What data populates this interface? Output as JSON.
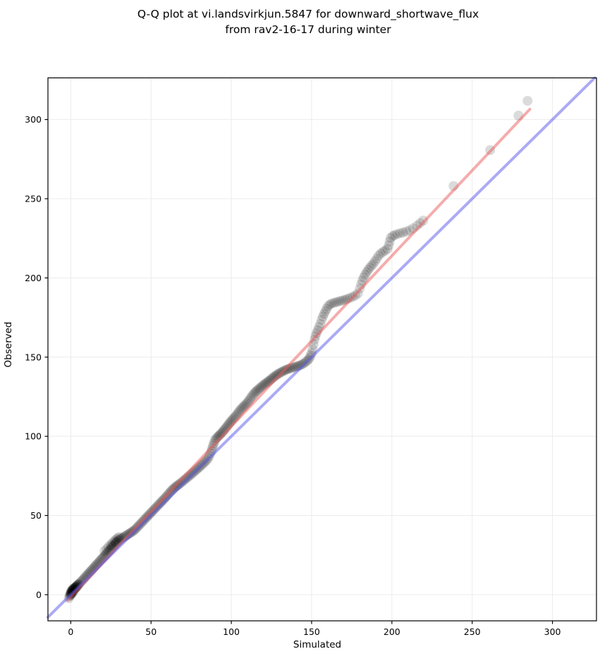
{
  "title": {
    "line1": "Q-Q plot at vi.landsvirkjun.5847 for downward_shortwave_flux",
    "line2": "from rav2-16-17 during winter"
  },
  "colors": {
    "background": "#ffffff",
    "grid": "#ebebeb",
    "spine": "#000000",
    "marker": "#000000",
    "marker_opacity": 0.14,
    "fit_line": "rgba(235,90,90,0.5)",
    "identity_line": "rgba(85,85,235,0.5)"
  },
  "chart_data": {
    "type": "scatter",
    "title": "Q-Q plot at vi.landsvirkjun.5847 for downward_shortwave_flux from rav2-16-17 during winter",
    "xlabel": "Simulated",
    "ylabel": "Observed",
    "xlim": [
      -14.2,
      327.4
    ],
    "ylim": [
      -16.5,
      326.3
    ],
    "x_ticks": [
      0,
      50,
      100,
      150,
      200,
      250,
      300
    ],
    "y_ticks": [
      0,
      50,
      100,
      150,
      200,
      250,
      300
    ],
    "grid": true,
    "legend": "none",
    "marker_radius": 7,
    "series": [
      {
        "name": "quantile-points",
        "type": "scatter",
        "points": [
          [
            -1.2,
            -2.2
          ],
          [
            -0.8,
            -1
          ],
          [
            -0.5,
            -0.4
          ],
          [
            0,
            -0.3
          ],
          [
            -0.3,
            0.6
          ],
          [
            0,
            0.5
          ],
          [
            0.1,
            1
          ],
          [
            0.2,
            1.6
          ],
          [
            0.3,
            2.2
          ],
          [
            0.5,
            0.3
          ],
          [
            0.5,
            1.2
          ],
          [
            0.6,
            2.6
          ],
          [
            0.8,
            1.8
          ],
          [
            0.9,
            3
          ],
          [
            1,
            1.1
          ],
          [
            1,
            2.3
          ],
          [
            1.2,
            3.4
          ],
          [
            1.4,
            2.8
          ],
          [
            1.5,
            1.9
          ],
          [
            1.6,
            3.8
          ],
          [
            1.8,
            3.1
          ],
          [
            2,
            2.6
          ],
          [
            2,
            4.1
          ],
          [
            2.2,
            3.5
          ],
          [
            2.4,
            4.4
          ],
          [
            2.6,
            3.9
          ],
          [
            2.8,
            4.7
          ],
          [
            3,
            4.2
          ],
          [
            3.2,
            5
          ],
          [
            3.4,
            4.6
          ],
          [
            3.6,
            5.3
          ],
          [
            3.8,
            5.7
          ],
          [
            4,
            5
          ],
          [
            4.2,
            6
          ],
          [
            4.5,
            6.3
          ],
          [
            4.8,
            6.6
          ],
          [
            5,
            6.6
          ],
          [
            5.7,
            7.4
          ],
          [
            6.4,
            8.2
          ],
          [
            7.1,
            8.9
          ],
          [
            7.8,
            9.7
          ],
          [
            8.5,
            10.5
          ],
          [
            9.2,
            11.4
          ],
          [
            9.9,
            12.1
          ],
          [
            10.6,
            12.9
          ],
          [
            11.3,
            13.6
          ],
          [
            12,
            14.4
          ],
          [
            12.7,
            15.2
          ],
          [
            13.4,
            16
          ],
          [
            14.1,
            16.8
          ],
          [
            14.8,
            17.6
          ],
          [
            15.5,
            18.4
          ],
          [
            16.2,
            19.1
          ],
          [
            16.9,
            19.9
          ],
          [
            17.6,
            20.7
          ],
          [
            18.3,
            21.5
          ],
          [
            19,
            22.3
          ],
          [
            19.7,
            23.1
          ],
          [
            20.4,
            23.8
          ],
          [
            21.1,
            24.6
          ],
          [
            21.8,
            25.4
          ],
          [
            22.5,
            26.2
          ],
          [
            23.2,
            27
          ],
          [
            23.9,
            27.8
          ],
          [
            24.6,
            28.5
          ],
          [
            25.3,
            29.3
          ],
          [
            26,
            30.1
          ],
          [
            26.7,
            30.9
          ],
          [
            27.4,
            31.7
          ],
          [
            28.1,
            32.5
          ],
          [
            28.8,
            33.2
          ],
          [
            29.5,
            34
          ],
          [
            21,
            27.5
          ],
          [
            22.3,
            28.8
          ],
          [
            23.5,
            30.2
          ],
          [
            24.8,
            31.5
          ],
          [
            26,
            32.8
          ],
          [
            27.2,
            34
          ],
          [
            28.3,
            35
          ],
          [
            29.3,
            35.8
          ],
          [
            30.2,
            36.4
          ],
          [
            25.5,
            31
          ],
          [
            27.8,
            33.3
          ],
          [
            30.1,
            34.5
          ],
          [
            30.9,
            35.1
          ],
          [
            31.7,
            35.6
          ],
          [
            32.5,
            36.1
          ],
          [
            33.3,
            36.6
          ],
          [
            34.1,
            37.1
          ],
          [
            34.9,
            37.6
          ],
          [
            35.7,
            38.1
          ],
          [
            36.5,
            38.6
          ],
          [
            37.3,
            39.1
          ],
          [
            38.1,
            39.7
          ],
          [
            38.9,
            40.2
          ],
          [
            39.7,
            40.8
          ],
          [
            40.5,
            41.6
          ],
          [
            41.3,
            42.5
          ],
          [
            42.1,
            43.3
          ],
          [
            42.9,
            44.2
          ],
          [
            43.7,
            45
          ],
          [
            44.5,
            45.9
          ],
          [
            45.3,
            46.7
          ],
          [
            46.1,
            47.6
          ],
          [
            46.9,
            48.5
          ],
          [
            47.7,
            49.3
          ],
          [
            48.5,
            50.2
          ],
          [
            49.3,
            51
          ],
          [
            50.1,
            51.9
          ],
          [
            50.9,
            52.7
          ],
          [
            51.7,
            53.6
          ],
          [
            52.5,
            54.4
          ],
          [
            53.3,
            55.3
          ],
          [
            54.1,
            56.2
          ],
          [
            54.9,
            57
          ],
          [
            55.7,
            57.9
          ],
          [
            56.5,
            58.7
          ],
          [
            57.3,
            59.6
          ],
          [
            58.1,
            60.4
          ],
          [
            58.9,
            61.3
          ],
          [
            59.7,
            62.1
          ],
          [
            60.5,
            63.2
          ],
          [
            61.3,
            64.1
          ],
          [
            62.1,
            65
          ],
          [
            62.9,
            65.9
          ],
          [
            63.7,
            66.7
          ],
          [
            64.5,
            67.4
          ],
          [
            65.3,
            68.1
          ],
          [
            66.1,
            68.7
          ],
          [
            66.9,
            69.3
          ],
          [
            67.7,
            69.9
          ],
          [
            68.6,
            70.6
          ],
          [
            69.5,
            71.4
          ],
          [
            70.4,
            72.1
          ],
          [
            71.3,
            72.9
          ],
          [
            72.2,
            73.7
          ],
          [
            73.1,
            74.4
          ],
          [
            74,
            75.2
          ],
          [
            74.9,
            75.9
          ],
          [
            75.8,
            76.7
          ],
          [
            76.7,
            77.5
          ],
          [
            77.6,
            78.3
          ],
          [
            78.5,
            79.1
          ],
          [
            79.4,
            79.9
          ],
          [
            80.3,
            80.7
          ],
          [
            81.2,
            81.6
          ],
          [
            82.1,
            82.4
          ],
          [
            83,
            83.3
          ],
          [
            83.9,
            84.2
          ],
          [
            84.8,
            85.1
          ],
          [
            85.6,
            86.3
          ],
          [
            86.3,
            87.6
          ],
          [
            87,
            89.2
          ],
          [
            87.6,
            90.8
          ],
          [
            88.1,
            92.4
          ],
          [
            88.6,
            94
          ],
          [
            89.1,
            95.5
          ],
          [
            89.6,
            97
          ],
          [
            90.2,
            98.2
          ],
          [
            90.9,
            99
          ],
          [
            91.6,
            99.7
          ],
          [
            92.3,
            100.4
          ],
          [
            93,
            101.1
          ],
          [
            93.7,
            101.9
          ],
          [
            94.4,
            102.6
          ],
          [
            95.1,
            103.4
          ],
          [
            95.8,
            104.3
          ],
          [
            96.5,
            105.2
          ],
          [
            97.2,
            106.1
          ],
          [
            97.9,
            107.1
          ],
          [
            98.6,
            108
          ],
          [
            99.3,
            108.9
          ],
          [
            100,
            109.8
          ],
          [
            100.8,
            110.7
          ],
          [
            101.6,
            111.6
          ],
          [
            102.4,
            112.5
          ],
          [
            103.2,
            113.5
          ],
          [
            104,
            114.6
          ],
          [
            104.8,
            115.7
          ],
          [
            105.6,
            116.7
          ],
          [
            106.4,
            117.6
          ],
          [
            107.2,
            118.4
          ],
          [
            108,
            119.2
          ],
          [
            108.8,
            120
          ],
          [
            109.6,
            120.9
          ],
          [
            110.4,
            121.9
          ],
          [
            111.2,
            123
          ],
          [
            112,
            124.2
          ],
          [
            112.8,
            125.3
          ],
          [
            113.6,
            126.4
          ],
          [
            114.4,
            127.4
          ],
          [
            115.2,
            128.2
          ],
          [
            116,
            128.9
          ],
          [
            116.8,
            129.6
          ],
          [
            117.6,
            130.3
          ],
          [
            118.4,
            131
          ],
          [
            119.2,
            131.7
          ],
          [
            120,
            132.4
          ],
          [
            120.8,
            133
          ],
          [
            121.6,
            133.6
          ],
          [
            122.4,
            134.2
          ],
          [
            123.2,
            134.8
          ],
          [
            124,
            135.4
          ],
          [
            124.8,
            136.1
          ],
          [
            125.6,
            136.8
          ],
          [
            126.4,
            137.4
          ],
          [
            127.2,
            138
          ],
          [
            128,
            138.6
          ],
          [
            128.8,
            139.2
          ],
          [
            129.7,
            139.7
          ],
          [
            130.6,
            140.2
          ],
          [
            131.5,
            140.7
          ],
          [
            132.4,
            141.2
          ],
          [
            133.3,
            141.6
          ],
          [
            134.2,
            142
          ],
          [
            135.1,
            142.4
          ],
          [
            136,
            142.7
          ],
          [
            137,
            143
          ],
          [
            138,
            143.3
          ],
          [
            139,
            143.6
          ],
          [
            140,
            143.9
          ],
          [
            141,
            144.2
          ],
          [
            142,
            144.5
          ],
          [
            143,
            144.9
          ],
          [
            144,
            145.4
          ],
          [
            145,
            146
          ],
          [
            146,
            146.7
          ],
          [
            147,
            147.5
          ],
          [
            148,
            148.4
          ],
          [
            148.7,
            149.5
          ],
          [
            149.4,
            151
          ],
          [
            150,
            152.5
          ],
          [
            150.6,
            155
          ],
          [
            151.2,
            158
          ],
          [
            151.8,
            161
          ],
          [
            152.4,
            163.3
          ],
          [
            153.1,
            165.2
          ],
          [
            153.8,
            167
          ],
          [
            154.6,
            169
          ],
          [
            155.4,
            171
          ],
          [
            156.2,
            173.5
          ],
          [
            157,
            175.5
          ],
          [
            157.8,
            177.3
          ],
          [
            158.6,
            179
          ],
          [
            159.4,
            180.6
          ],
          [
            160.3,
            182.2
          ],
          [
            161.4,
            183.2
          ],
          [
            162.6,
            183.9
          ],
          [
            164,
            184.3
          ],
          [
            165.4,
            184.7
          ],
          [
            166.8,
            185.1
          ],
          [
            168.2,
            185.5
          ],
          [
            169.6,
            185.9
          ],
          [
            171,
            186.3
          ],
          [
            172.4,
            186.8
          ],
          [
            174,
            187.4
          ],
          [
            175.6,
            188.1
          ],
          [
            177.2,
            188.9
          ],
          [
            178.8,
            190.2
          ],
          [
            180,
            193.3
          ],
          [
            180.8,
            196
          ],
          [
            181.6,
            198.4
          ],
          [
            182.4,
            200.3
          ],
          [
            183.3,
            202
          ],
          [
            184.2,
            203.6
          ],
          [
            185.2,
            205.1
          ],
          [
            186.2,
            206.4
          ],
          [
            187.3,
            207.7
          ],
          [
            188.4,
            209
          ],
          [
            189.5,
            210.5
          ],
          [
            190.6,
            212.2
          ],
          [
            191.7,
            214
          ],
          [
            193,
            215.4
          ],
          [
            194.4,
            216.4
          ],
          [
            195.8,
            217.3
          ],
          [
            197.2,
            218.3
          ],
          [
            198,
            220.5
          ],
          [
            198.6,
            223
          ],
          [
            199.2,
            225.2
          ],
          [
            200.4,
            226.4
          ],
          [
            201.8,
            227.1
          ],
          [
            203.4,
            227.7
          ],
          [
            205.2,
            228.2
          ],
          [
            207,
            228.7
          ],
          [
            209,
            229.3
          ],
          [
            211,
            230.1
          ],
          [
            213.2,
            231.3
          ],
          [
            215.6,
            233
          ],
          [
            217.6,
            234.6
          ],
          [
            219.5,
            236.2
          ],
          [
            238.4,
            258
          ],
          [
            261.2,
            280.7
          ],
          [
            278.8,
            302.5
          ],
          [
            284.5,
            311.8
          ]
        ]
      },
      {
        "name": "fit-line",
        "type": "line",
        "from": [
          -2,
          -3.55
        ],
        "to": [
          285.9,
          306.5
        ]
      },
      {
        "name": "identity-line",
        "type": "line",
        "from": [
          -14.2,
          -14.2
        ],
        "to": [
          326.3,
          326.3
        ]
      }
    ]
  }
}
